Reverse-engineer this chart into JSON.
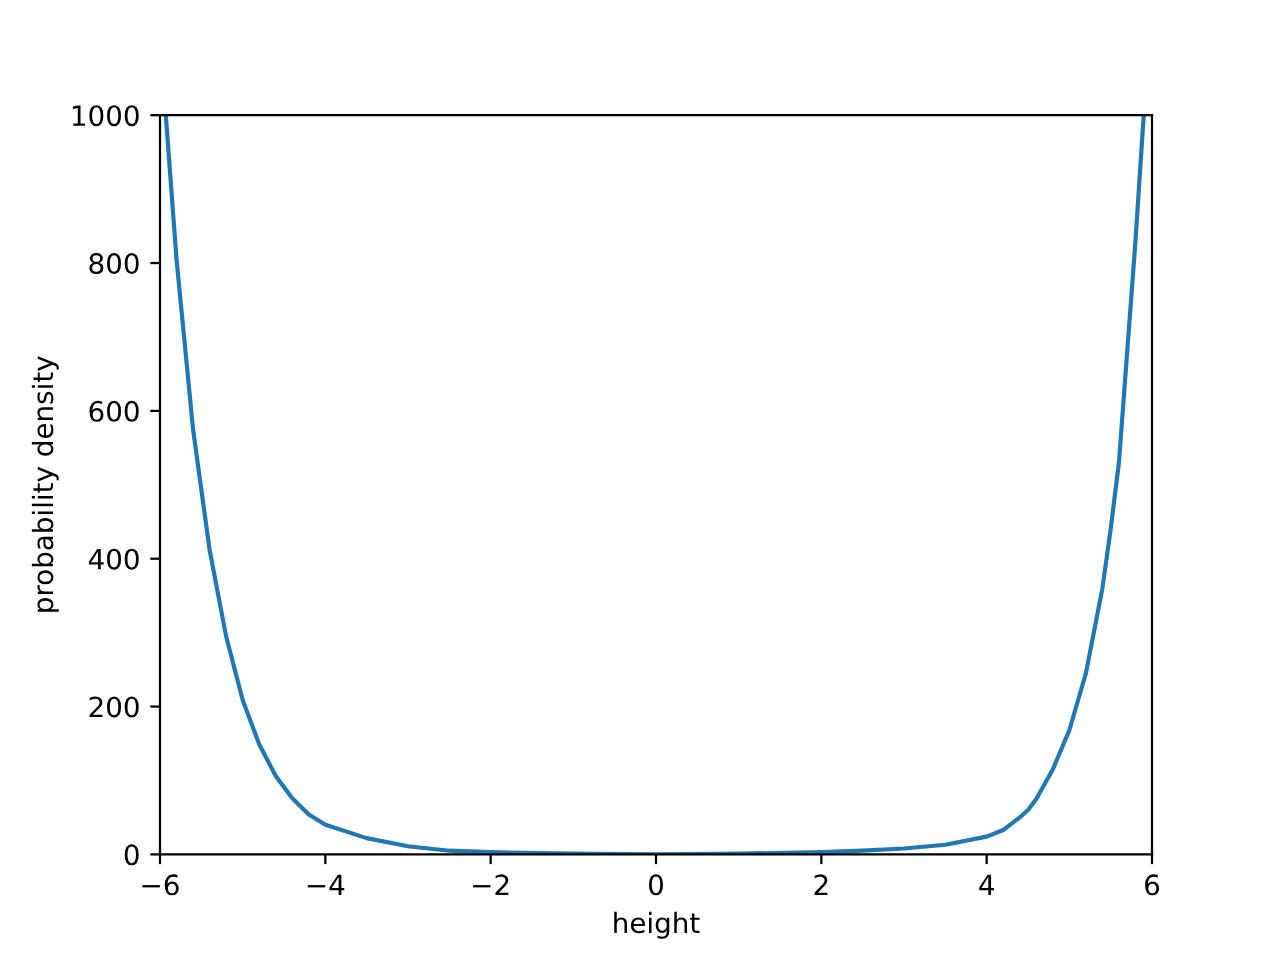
{
  "chart_data": {
    "type": "line",
    "xlabel": "height",
    "ylabel": "probability density",
    "x": [
      -5.93,
      -5.8,
      -5.6,
      -5.4,
      -5.2,
      -5.0,
      -4.8,
      -4.6,
      -4.4,
      -4.2,
      -4.0,
      -3.5,
      -3.0,
      -2.5,
      -2.0,
      -1.0,
      0.0,
      1.0,
      2.0,
      2.5,
      3.0,
      3.5,
      4.0,
      4.2,
      4.4,
      4.5,
      4.6,
      4.8,
      5.0,
      5.2,
      5.4,
      5.5,
      5.6,
      5.8,
      5.9
    ],
    "series": [
      {
        "color": "#1f77b4",
        "values": [
          1000,
          805,
          575,
          412,
          295,
          209,
          149,
          106,
          76,
          54,
          40,
          22,
          11,
          5,
          3,
          1,
          0,
          1,
          3,
          5,
          8,
          13,
          24,
          33,
          50,
          60,
          75,
          115,
          168,
          245,
          360,
          440,
          530,
          830,
          1000
        ]
      }
    ],
    "xlim": [
      -6,
      6
    ],
    "ylim": [
      0,
      1000
    ],
    "xticks": [
      {
        "value": -6,
        "label": "−6"
      },
      {
        "value": -4,
        "label": "−4"
      },
      {
        "value": -2,
        "label": "−2"
      },
      0,
      2,
      4,
      6
    ],
    "yticks": [
      0,
      200,
      400,
      600,
      800,
      1000
    ],
    "grid": false,
    "legend": false
  }
}
